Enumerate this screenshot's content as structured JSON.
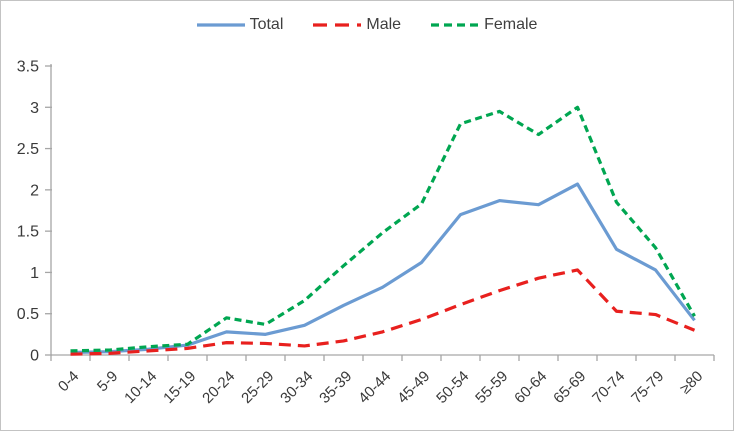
{
  "chart_data": {
    "type": "line",
    "title": "",
    "xlabel": "",
    "ylabel": "",
    "categories": [
      "0-4",
      "5-9",
      "10-14",
      "15-19",
      "20-24",
      "25-29",
      "30-34",
      "35-39",
      "40-44",
      "45-49",
      "50-54",
      "55-59",
      "60-64",
      "65-69",
      "70-74",
      "75-79",
      "≥80"
    ],
    "series": [
      {
        "name": "Total",
        "color": "#6B9BD2",
        "dash": "",
        "legend_dash": "",
        "values": [
          0.03,
          0.04,
          0.07,
          0.12,
          0.28,
          0.25,
          0.36,
          0.6,
          0.82,
          1.12,
          1.7,
          1.87,
          1.82,
          2.07,
          1.28,
          1.03,
          0.42
        ]
      },
      {
        "name": "Male",
        "color": "#E8201E",
        "dash": "12,7",
        "legend_dash": "14,8",
        "values": [
          0.01,
          0.02,
          0.05,
          0.08,
          0.15,
          0.14,
          0.11,
          0.17,
          0.28,
          0.43,
          0.61,
          0.78,
          0.93,
          1.03,
          0.53,
          0.49,
          0.3
        ]
      },
      {
        "name": "Female",
        "color": "#00A651",
        "dash": "7,4.5",
        "legend_dash": "8,5",
        "values": [
          0.05,
          0.06,
          0.1,
          0.13,
          0.45,
          0.37,
          0.66,
          1.08,
          1.48,
          1.83,
          2.8,
          2.95,
          2.67,
          3.0,
          1.85,
          1.3,
          0.47
        ]
      }
    ],
    "y_ticks": [
      "0",
      "0.5",
      "1",
      "1.5",
      "2",
      "2.5",
      "3",
      "3.5"
    ],
    "ylim": [
      0,
      3.5
    ],
    "grid": false,
    "legend_position": "top"
  },
  "style": {
    "axis_color": "#a6a6a6",
    "label_color": "#3a3a3a",
    "border_color": "#c3c3c3"
  }
}
